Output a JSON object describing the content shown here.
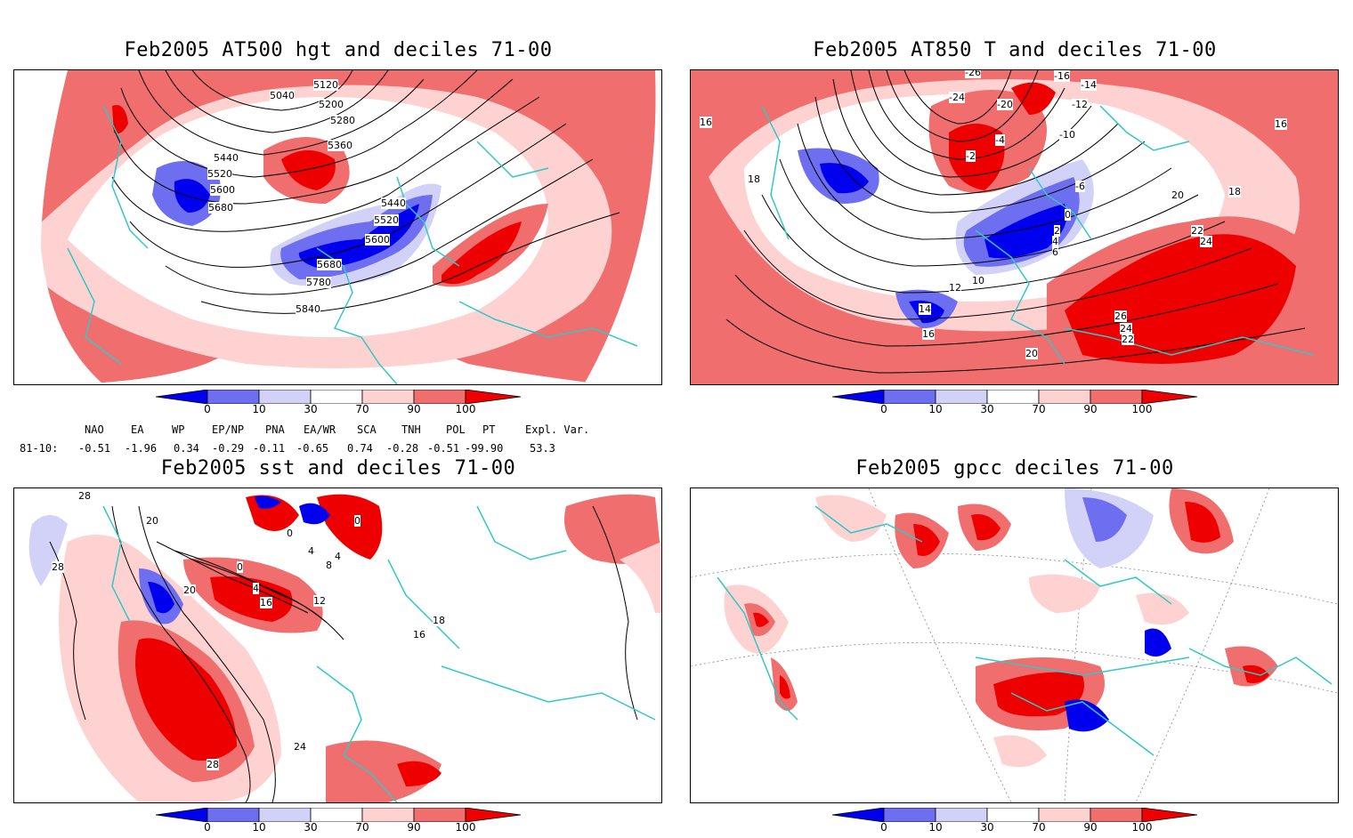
{
  "panels": [
    {
      "title": "Feb2005 AT500 hgt and deciles 71-00",
      "contour_labels": [
        "5040",
        "5120",
        "5200",
        "5280",
        "5360",
        "5440",
        "5520",
        "5600",
        "5680",
        "5440",
        "5520",
        "5600",
        "5680",
        "5780",
        "5840"
      ]
    },
    {
      "title": "Feb2005 AT850 T and deciles 71-00",
      "contour_labels": [
        "-26",
        "-24",
        "-20",
        "-16",
        "-14",
        "-12",
        "-10",
        "-6",
        "-4",
        "-2",
        "0",
        "2",
        "4",
        "6",
        "10",
        "12",
        "14",
        "16",
        "18",
        "20",
        "22",
        "24",
        "26",
        "24",
        "22",
        "20",
        "16",
        "18",
        "16"
      ]
    },
    {
      "title": "Feb2005 sst and deciles 71-00",
      "contour_labels": [
        "28",
        "20",
        "0",
        "0",
        "4",
        "4",
        "8",
        "4",
        "0",
        "12",
        "16",
        "16",
        "18",
        "24",
        "28",
        "28",
        "20"
      ]
    },
    {
      "title": "Feb2005 gpcc deciles 71-00",
      "contour_labels": []
    }
  ],
  "colorbar": {
    "ticks": [
      "0",
      "10",
      "30",
      "70",
      "90",
      "100"
    ],
    "colors": [
      "#0000ee",
      "#6e6ef0",
      "#d2d2f8",
      "#ffffff",
      "#ffd2d2",
      "#f06e6e",
      "#ee0000"
    ]
  },
  "indices": {
    "row_label": "81-10:",
    "names": [
      "NAO",
      "EA",
      "WP",
      "EP/NP",
      "PNA",
      "EA/WR",
      "SCA",
      "TNH",
      "POL",
      "PT",
      "Expl. Var."
    ],
    "values": [
      "-0.51",
      "-1.96",
      "0.34",
      "-0.29",
      "-0.11",
      "-0.65",
      "0.74",
      "-0.28",
      "-0.51",
      "-99.90",
      "53.3"
    ]
  },
  "map_colors": {
    "coast": "#30c8c8",
    "contour": "#000000",
    "graticule": "#888888"
  }
}
